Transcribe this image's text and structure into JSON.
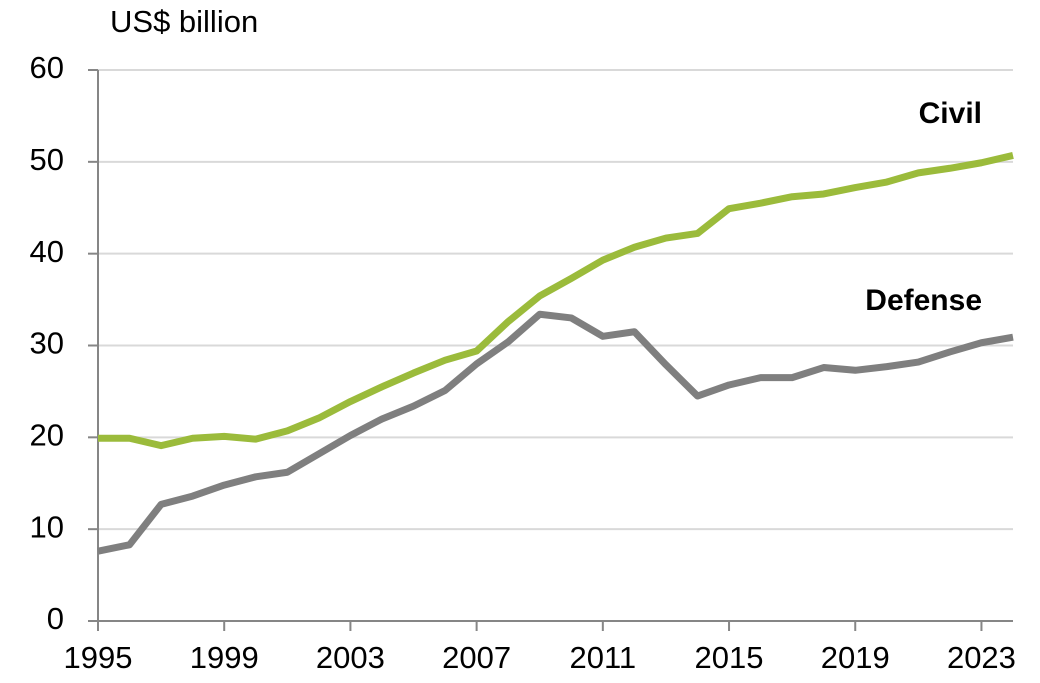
{
  "chart_data": {
    "type": "line",
    "y_label": "US$ billion",
    "x": [
      1995,
      1996,
      1997,
      1998,
      1999,
      2000,
      2001,
      2002,
      2003,
      2004,
      2005,
      2006,
      2007,
      2008,
      2009,
      2010,
      2011,
      2012,
      2013,
      2014,
      2015,
      2016,
      2017,
      2018,
      2019,
      2020,
      2021,
      2022,
      2023,
      2024
    ],
    "series": [
      {
        "name": "Civil",
        "color": "#9bbb3b",
        "values": [
          19.9,
          19.9,
          19.1,
          19.9,
          20.1,
          19.8,
          20.7,
          22.1,
          23.9,
          25.5,
          27.0,
          28.4,
          29.4,
          32.6,
          35.4,
          37.3,
          39.3,
          40.7,
          41.7,
          42.2,
          44.9,
          45.5,
          46.2,
          46.5,
          47.2,
          47.8,
          48.8,
          49.3,
          49.9,
          50.7
        ]
      },
      {
        "name": "Defense",
        "color": "#7f7f7f",
        "values": [
          7.6,
          8.3,
          12.7,
          13.6,
          14.8,
          15.7,
          16.2,
          18.2,
          20.2,
          22.0,
          23.4,
          25.1,
          28.0,
          30.4,
          33.4,
          33.0,
          31.0,
          31.5,
          27.9,
          24.5,
          25.7,
          26.5,
          26.5,
          27.6,
          27.3,
          27.7,
          28.2,
          29.3,
          30.3,
          30.9
        ]
      }
    ],
    "xlim": [
      1995,
      2024
    ],
    "xticks": [
      1995,
      1999,
      2003,
      2007,
      2011,
      2015,
      2019,
      2023
    ],
    "ylim": [
      0,
      60
    ],
    "yticks": [
      0,
      10,
      20,
      30,
      40,
      50,
      60
    ],
    "grid": true
  }
}
